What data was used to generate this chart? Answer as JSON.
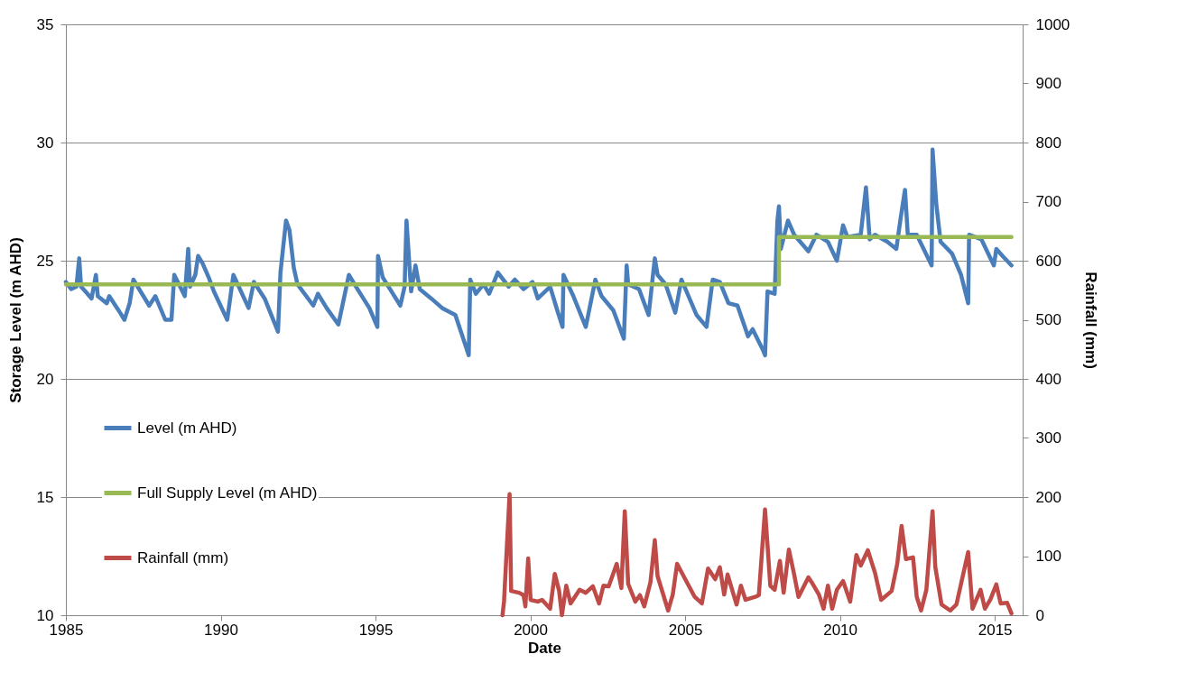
{
  "chart_data": {
    "type": "line",
    "xlabel": "Date",
    "ylabel": "Storage Level (m AHD)",
    "y2label": "Rainfall (mm)",
    "xlim": [
      1985,
      2015.9
    ],
    "xticks": [
      1985,
      1990,
      1995,
      2000,
      2005,
      2010,
      2015
    ],
    "ylim": [
      10,
      35
    ],
    "yticks": [
      10,
      15,
      20,
      25,
      30,
      35
    ],
    "y2lim": [
      0,
      1000
    ],
    "y2ticks": [
      0,
      100,
      200,
      300,
      400,
      500,
      600,
      700,
      800,
      900,
      1000
    ],
    "grid": "y",
    "legend": "left",
    "series": [
      {
        "name": "Level (m AHD)",
        "color": "#4a7ebb",
        "type": "line",
        "x": [
          1985.0,
          1985.17,
          1985.34,
          1985.43,
          1985.49,
          1985.63,
          1985.83,
          1985.97,
          1986.03,
          1986.32,
          1986.4,
          1986.6,
          1986.75,
          1986.89,
          1987.06,
          1987.18,
          1987.69,
          1987.89,
          1988.21,
          1988.41,
          1988.5,
          1988.84,
          1988.95,
          1989.01,
          1989.18,
          1989.27,
          1989.41,
          1989.61,
          1989.78,
          1990.21,
          1990.41,
          1990.9,
          1991.07,
          1991.42,
          1991.85,
          1991.93,
          1992.11,
          1992.22,
          1992.36,
          1992.48,
          1992.99,
          1993.14,
          1993.42,
          1993.8,
          1994.14,
          1994.37,
          1994.8,
          1995.06,
          1995.08,
          1995.23,
          1995.8,
          1995.94,
          1996.0,
          1996.15,
          1996.29,
          1996.43,
          1996.8,
          1997.15,
          1997.58,
          1998.01,
          1998.06,
          1998.24,
          1998.49,
          1998.67,
          1998.95,
          1999.3,
          1999.5,
          1999.78,
          2000.07,
          2000.24,
          2000.64,
          2000.87,
          2001.04,
          2001.07,
          2001.39,
          2001.79,
          2002.1,
          2002.3,
          2002.68,
          2003.02,
          2003.11,
          2003.16,
          2003.51,
          2003.82,
          2004.02,
          2004.11,
          2004.37,
          2004.68,
          2004.88,
          2005.37,
          2005.69,
          2005.89,
          2006.12,
          2006.4,
          2006.69,
          2007.03,
          2007.18,
          2007.52,
          2007.58,
          2007.66,
          2007.89,
          2007.98,
          2008.03,
          2008.09,
          2008.32,
          2008.52,
          2008.98,
          2009.24,
          2009.61,
          2009.9,
          2010.1,
          2010.24,
          2010.67,
          2010.84,
          2010.96,
          2011.13,
          2011.53,
          2011.82,
          2011.96,
          2012.1,
          2012.19,
          2012.48,
          2012.96,
          2012.99,
          2013.11,
          2013.25,
          2013.62,
          2013.91,
          2014.14,
          2014.17,
          2014.57,
          2014.97,
          2015.05,
          2015.25,
          2015.54
        ],
        "values": [
          24.1,
          23.8,
          23.9,
          25.1,
          23.9,
          23.7,
          23.4,
          24.4,
          23.5,
          23.2,
          23.5,
          23.1,
          22.8,
          22.5,
          23.2,
          24.2,
          23.1,
          23.5,
          22.5,
          22.5,
          24.4,
          23.5,
          25.5,
          23.9,
          24.4,
          25.2,
          24.9,
          24.3,
          23.7,
          22.5,
          24.4,
          23.0,
          24.1,
          23.4,
          22.0,
          24.5,
          26.7,
          26.3,
          24.7,
          24.0,
          23.1,
          23.6,
          23.0,
          22.3,
          24.4,
          23.9,
          23.0,
          22.2,
          25.2,
          24.3,
          23.1,
          23.9,
          26.7,
          23.7,
          24.8,
          23.8,
          23.4,
          23.0,
          22.7,
          21.0,
          24.2,
          23.6,
          24.0,
          23.6,
          24.5,
          23.9,
          24.2,
          23.8,
          24.1,
          23.4,
          23.9,
          22.9,
          22.2,
          24.4,
          23.5,
          22.2,
          24.2,
          23.5,
          22.9,
          21.7,
          24.8,
          24.0,
          23.8,
          22.7,
          25.1,
          24.4,
          24.0,
          22.8,
          24.2,
          22.7,
          22.2,
          24.2,
          24.1,
          23.2,
          23.1,
          21.8,
          22.1,
          21.2,
          21.0,
          23.7,
          23.6,
          26.7,
          27.3,
          25.5,
          26.7,
          26.1,
          25.4,
          26.1,
          25.8,
          25.0,
          26.5,
          26.0,
          26.1,
          28.1,
          25.9,
          26.1,
          25.8,
          25.5,
          26.8,
          28.0,
          26.1,
          26.1,
          24.8,
          29.7,
          27.4,
          25.8,
          25.3,
          24.4,
          23.2,
          26.1,
          25.9,
          24.8,
          25.5,
          25.2,
          24.8
        ]
      },
      {
        "name": "Full Supply Level (m AHD)",
        "color": "#98b954",
        "type": "step",
        "x": [
          1985.0,
          2008.03,
          2015.54
        ],
        "values": [
          24,
          26,
          26
        ]
      },
      {
        "name": "Rainfall (mm)",
        "color": "#be4b48",
        "type": "line",
        "axis": "y2",
        "x": [
          1999.1,
          1999.15,
          1999.33,
          1999.38,
          1999.64,
          1999.78,
          1999.84,
          1999.93,
          2000.01,
          2000.24,
          2000.38,
          2000.64,
          2000.79,
          2000.93,
          2001.02,
          2001.16,
          2001.3,
          2001.59,
          2001.79,
          2002.02,
          2002.22,
          2002.36,
          2002.53,
          2002.79,
          2002.94,
          2003.05,
          2003.16,
          2003.39,
          2003.54,
          2003.68,
          2003.88,
          2004.02,
          2004.11,
          2004.45,
          2004.6,
          2004.74,
          2004.97,
          2005.31,
          2005.54,
          2005.74,
          2005.97,
          2006.12,
          2006.26,
          2006.37,
          2006.66,
          2006.8,
          2006.95,
          2007.26,
          2007.38,
          2007.58,
          2007.75,
          2007.89,
          2008.06,
          2008.18,
          2008.35,
          2008.52,
          2008.66,
          2008.98,
          2009.12,
          2009.32,
          2009.47,
          2009.61,
          2009.75,
          2009.9,
          2010.1,
          2010.33,
          2010.53,
          2010.67,
          2010.9,
          2011.13,
          2011.33,
          2011.67,
          2011.85,
          2011.99,
          2012.13,
          2012.36,
          2012.48,
          2012.62,
          2012.79,
          2012.99,
          2013.08,
          2013.28,
          2013.56,
          2013.76,
          2014.14,
          2014.28,
          2014.54,
          2014.68,
          2014.86,
          2015.05,
          2015.19,
          2015.4,
          2015.54
        ],
        "values": [
          0,
          23,
          205,
          41,
          38,
          34,
          15,
          96,
          26,
          23,
          26,
          11,
          70,
          41,
          0,
          50,
          20,
          43,
          38,
          49,
          20,
          50,
          49,
          87,
          46,
          176,
          53,
          23,
          34,
          15,
          56,
          127,
          66,
          8,
          35,
          87,
          64,
          31,
          20,
          79,
          61,
          81,
          35,
          69,
          18,
          50,
          26,
          31,
          34,
          179,
          50,
          43,
          92,
          38,
          111,
          69,
          31,
          64,
          53,
          35,
          11,
          50,
          11,
          43,
          58,
          23,
          102,
          84,
          110,
          72,
          26,
          41,
          87,
          151,
          95,
          98,
          31,
          8,
          43,
          176,
          81,
          18,
          8,
          18,
          107,
          11,
          43,
          11,
          27,
          52,
          20,
          21,
          3
        ]
      }
    ]
  }
}
